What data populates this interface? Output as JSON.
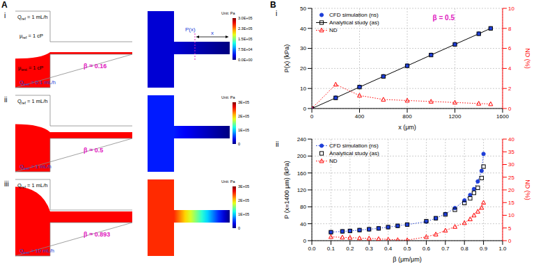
{
  "panel_A": {
    "label": "A",
    "cases": [
      {
        "label": "i",
        "q_ref": {
          "main": "Q",
          "sub": "ref",
          "rest": " = 1 mL/h"
        },
        "q_test": {
          "main": "Q",
          "sub": "test",
          "rest": " = 0.1 mL/h"
        },
        "mu_ref": {
          "main": "μ",
          "sub": "ref",
          "rest": " = 1 cP"
        },
        "mu_test": {
          "main": "μ",
          "sub": "test",
          "rest": " = 1 cP"
        },
        "beta": 0.16,
        "beta_label": "β = 0.16",
        "probe": {
          "p_label": "P(x)",
          "x_label": "x"
        },
        "inlet_pressure": 25000,
        "colorbar": {
          "title": "Unit: Pa",
          "range": [
            0,
            300000
          ],
          "ticks": [
            {
              "value": 300000,
              "label": "3.0E+05"
            },
            {
              "value": 225000,
              "label": "2.3E+05"
            },
            {
              "value": 150000,
              "label": "1.5E+05"
            },
            {
              "value": 75000,
              "label": "7.5E+04"
            },
            {
              "value": 0,
              "label": "0.0E+00"
            }
          ]
        }
      },
      {
        "label": "ii",
        "q_ref": {
          "main": "Q",
          "sub": "ref",
          "rest": " = 1 mL/h"
        },
        "q_test": {
          "main": "Q",
          "sub": "test",
          "rest": " = 1 mL/h"
        },
        "beta": 0.5,
        "beta_label": "β = 0.5",
        "inlet_pressure": 45000,
        "colorbar": {
          "title": "Unit: Pa",
          "range": [
            0,
            300000
          ],
          "ticks": [
            {
              "value": 300000,
              "label": "3E+05"
            },
            {
              "value": 200000,
              "label": "2E+05"
            },
            {
              "value": 100000,
              "label": "1E+05"
            },
            0
          ]
        }
      },
      {
        "label": "iii",
        "q_ref": {
          "main": "Q",
          "sub": "ref",
          "rest": " = 1 mL/h"
        },
        "q_test": {
          "main": "Q",
          "sub": "test",
          "rest": " = 10 mL/h"
        },
        "beta": 0.893,
        "beta_label": "β = 0.893",
        "inlet_pressure": 250000,
        "colorbar": {
          "title": "Unit: Pa",
          "range": [
            0,
            300000
          ],
          "ticks": [
            {
              "value": 300000,
              "label": "3E+05"
            },
            {
              "value": 200000,
              "label": "2E+05"
            },
            {
              "value": 100000,
              "label": "1E+05"
            },
            0
          ]
        }
      }
    ]
  },
  "panel_B": {
    "label": "B"
  },
  "chart_data": [
    {
      "label": "i",
      "type": "line",
      "x_label": "x (μm)",
      "y_label": "P(x) (kPa)",
      "y2_label": "ND (%)",
      "annotation": "β = 0.5",
      "x": [
        0,
        200,
        400,
        600,
        800,
        1000,
        1200,
        1400,
        1500
      ],
      "series": [
        {
          "name": "CFD simulation (ns)",
          "color": "#1f3fd8",
          "marker": "circle",
          "line_style": "none",
          "values": [
            0,
            5.4,
            10.8,
            16.1,
            21.4,
            26.8,
            32.1,
            37.4,
            40.0
          ]
        },
        {
          "name": "Analytical study (as)",
          "color": "#000000",
          "marker": "square",
          "line_style": "solid",
          "values": [
            0,
            5.3,
            10.7,
            16,
            21.3,
            26.7,
            32,
            37.3,
            40
          ]
        },
        {
          "name": "ND",
          "color": "#ff0000",
          "marker": "triangle",
          "line_style": "dotted",
          "axis": "y2",
          "values": [
            0,
            2.4,
            1.3,
            0.9,
            0.8,
            0.7,
            0.6,
            0.5,
            0.45
          ]
        }
      ],
      "xlim": [
        0,
        1600
      ],
      "xticks": [
        0,
        400,
        800,
        1200,
        1600
      ],
      "ylim": [
        0,
        50
      ],
      "yticks": [
        0,
        10,
        20,
        30,
        40,
        50
      ],
      "y2lim": [
        0,
        10
      ],
      "y2ticks": [
        0,
        2,
        4,
        6,
        8,
        10
      ],
      "grid": true,
      "legend": "upper left"
    },
    {
      "label": "ii",
      "type": "line",
      "x_label": "β (μm/μm)",
      "y_label": "P (x=1400 μm) (kPa)",
      "y2_label": "ND (%)",
      "x": [
        0.1,
        0.16,
        0.2,
        0.25,
        0.3,
        0.35,
        0.4,
        0.45,
        0.5,
        0.6,
        0.65,
        0.7,
        0.75,
        0.8,
        0.83,
        0.85,
        0.87,
        0.89,
        0.9
      ],
      "series": [
        {
          "name": "CFD simulation (ns)",
          "color": "#1f3fd8",
          "marker": "circle",
          "line_style": "dotted",
          "values": [
            20,
            22,
            23,
            25,
            27,
            29,
            32,
            35,
            38,
            45,
            53,
            63,
            77,
            95,
            108,
            122,
            140,
            165,
            205
          ]
        },
        {
          "name": "Analytical study (as)",
          "color": "#000000",
          "marker": "square",
          "line_style": "none",
          "values": [
            20,
            22,
            23,
            25,
            27,
            29,
            32,
            35,
            38,
            46,
            53,
            62,
            73,
            89,
            100,
            113,
            125,
            148,
            175
          ]
        },
        {
          "name": "ND",
          "color": "#ff0000",
          "marker": "triangle",
          "line_style": "dotted",
          "axis": "y2",
          "values": [
            1.5,
            1.3,
            1.2,
            1.0,
            0.9,
            0.7,
            0.5,
            0.3,
            0.2,
            1.5,
            2.5,
            4,
            5.5,
            7,
            8.5,
            10,
            11.5,
            13,
            15
          ]
        }
      ],
      "xlim": [
        0,
        1
      ],
      "xticks": [
        {
          "value": 0,
          "label": "0.0"
        },
        0.1,
        0.2,
        0.3,
        0.4,
        0.5,
        0.6,
        0.7,
        0.8,
        0.9,
        {
          "value": 1,
          "label": "1.0"
        }
      ],
      "ylim": [
        0,
        240
      ],
      "yticks": [
        0,
        40,
        80,
        120,
        160,
        200,
        240
      ],
      "y2lim": [
        0,
        40
      ],
      "y2ticks": [
        0,
        5,
        10,
        15,
        20,
        25,
        30,
        35,
        40
      ],
      "grid": true,
      "legend": "upper left"
    }
  ]
}
